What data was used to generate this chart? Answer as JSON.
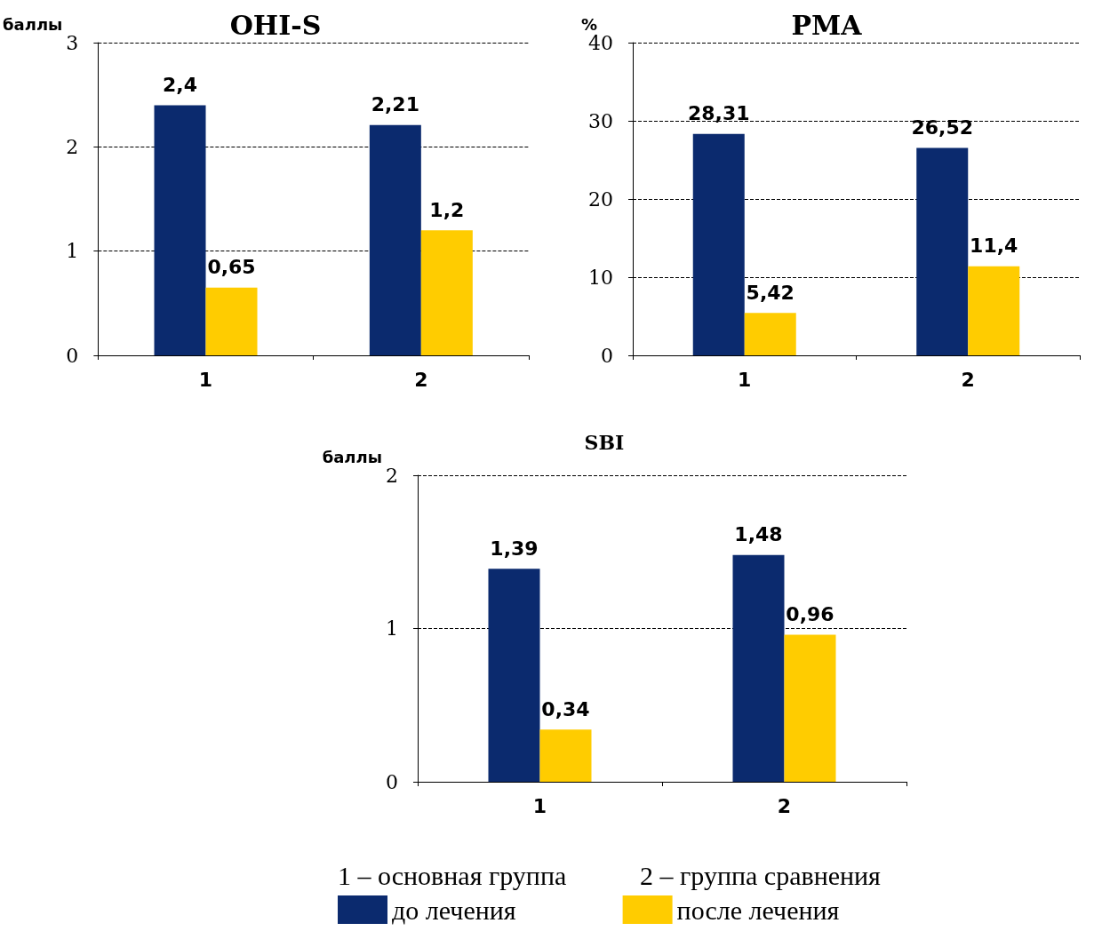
{
  "chart_data": [
    {
      "type": "bar",
      "title": "OHI-S",
      "ylabel": "баллы",
      "categories": [
        "1",
        "2"
      ],
      "ylim": [
        0,
        3
      ],
      "yticks": [
        0,
        1,
        2,
        3
      ],
      "grid": "y",
      "legend": false,
      "series": [
        {
          "color": "#0b2a6e",
          "values": [
            2.4,
            2.21
          ],
          "value_labels": [
            "2,4",
            "2,21"
          ]
        },
        {
          "color": "#ffcc00",
          "values": [
            0.65,
            1.2
          ],
          "value_labels": [
            "0,65",
            "1,2"
          ]
        }
      ]
    },
    {
      "type": "bar",
      "title": "PMA",
      "ylabel": "%",
      "categories": [
        "1",
        "2"
      ],
      "ylim": [
        0,
        40
      ],
      "yticks": [
        0,
        10,
        20,
        30,
        40
      ],
      "grid": "y",
      "legend": false,
      "series": [
        {
          "color": "#0b2a6e",
          "values": [
            28.31,
            26.52
          ],
          "value_labels": [
            "28,31",
            "26,52"
          ]
        },
        {
          "color": "#ffcc00",
          "values": [
            5.42,
            11.4
          ],
          "value_labels": [
            "5,42",
            "11,4"
          ]
        }
      ]
    },
    {
      "type": "bar",
      "title": "SBI",
      "ylabel": "баллы",
      "categories": [
        "1",
        "2"
      ],
      "ylim": [
        0,
        2
      ],
      "yticks": [
        0,
        1,
        2
      ],
      "grid": "y",
      "legend": "bottom",
      "annotations": [
        "1 – основная группа",
        "2 – группа сравнения"
      ],
      "series": [
        {
          "name": "до лечения",
          "color": "#0b2a6e",
          "values": [
            1.39,
            1.48
          ],
          "value_labels": [
            "1,39",
            "1,48"
          ]
        },
        {
          "name": "после лечения",
          "color": "#ffcc00",
          "values": [
            0.34,
            0.96
          ],
          "value_labels": [
            "0,34",
            "0,96"
          ]
        }
      ]
    }
  ]
}
